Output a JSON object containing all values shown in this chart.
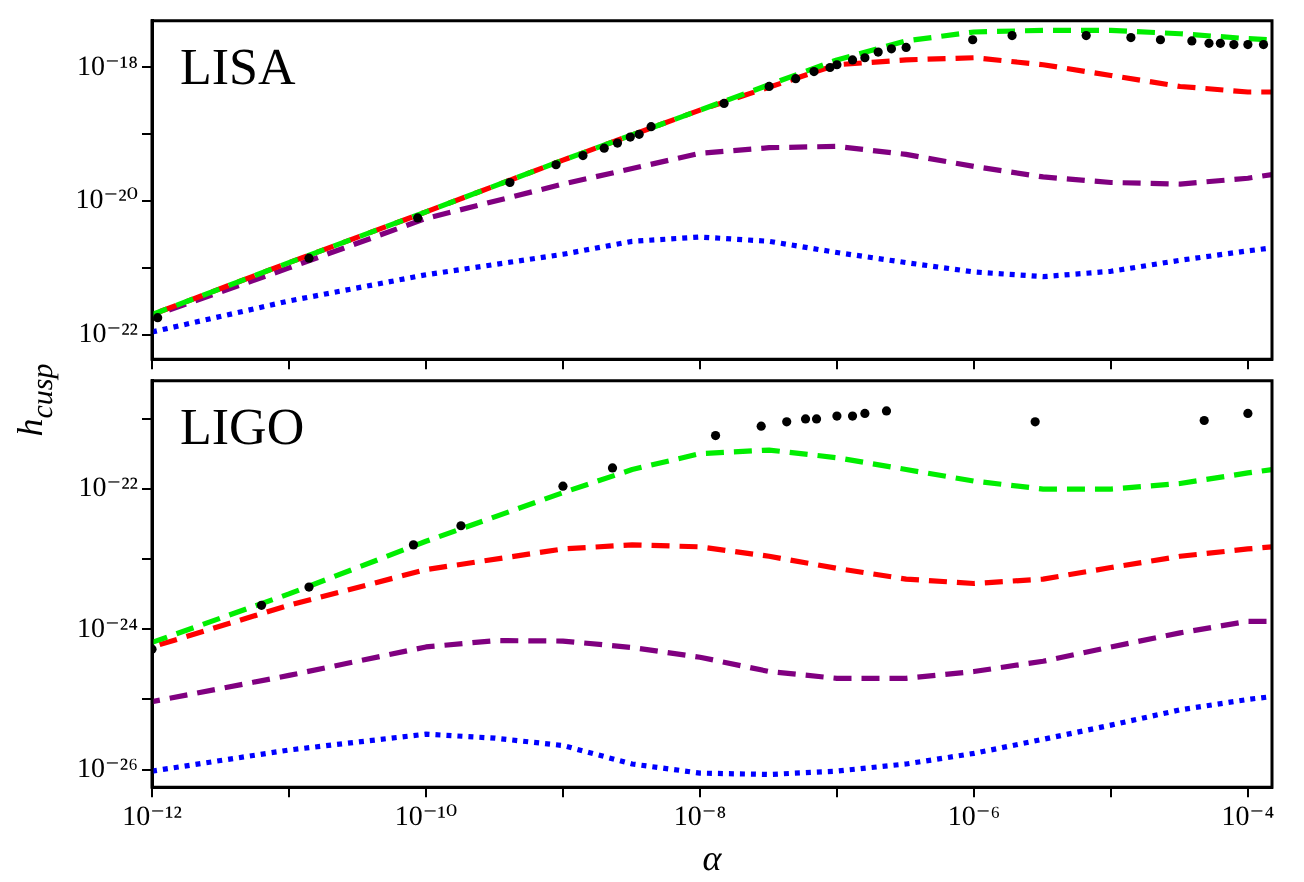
{
  "chart_data": [
    {
      "type": "line",
      "ylabel": "h$_{cusp}$",
      "annotations": [
        "LISA"
      ],
      "log": "xy",
      "grid": false,
      "legend": false,
      "tick_labels": "y",
      "xlim": [
        1e-12,
        0.00015
      ],
      "ylim": [
        4.3e-23,
        5e-18
      ],
      "xticks": [
        {
          "value": 1e-12,
          "label": null
        },
        {
          "value": 1e-11,
          "label": null
        },
        {
          "value": 1e-10,
          "label": null
        },
        {
          "value": 1e-09,
          "label": null
        },
        {
          "value": 1e-08,
          "label": null
        },
        {
          "value": 1e-07,
          "label": null
        },
        {
          "value": 1e-06,
          "label": null
        },
        {
          "value": 1e-05,
          "label": null
        },
        {
          "value": 0.0001,
          "label": null
        }
      ],
      "yticks": [
        {
          "value": 1e-22,
          "label": "10⁻²²"
        },
        {
          "value": 1e-21,
          "label": null
        },
        {
          "value": 1e-20,
          "label": "10⁻²⁰"
        },
        {
          "value": 1e-19,
          "label": null
        },
        {
          "value": 1e-18,
          "label": "10⁻¹⁸"
        }
      ],
      "series": [
        {
          "color": "#0000ff",
          "line_style": "dotted",
          "x": [
            1e-12,
            1e-11,
            1e-10,
            1e-09,
            3.2e-09,
            1e-08,
            3.2e-08,
            1e-07,
            3.2e-07,
            1e-06,
            3.2e-06,
            1e-05,
            3.2e-05,
            0.0001,
            0.00015
          ],
          "values": [
            1.1e-22,
            3.2e-22,
            7.9e-22,
            1.6e-21,
            2.5e-21,
            2.9e-21,
            2.5e-21,
            1.7e-21,
            1.2e-21,
            8.7e-22,
            7.4e-22,
            8.9e-22,
            1.3e-21,
            1.8e-21,
            2e-21
          ]
        },
        {
          "color": "#800080",
          "line_style": "dashed",
          "x": [
            1e-12,
            1e-11,
            1e-10,
            1e-09,
            1e-08,
            3.2e-08,
            1e-07,
            3.2e-07,
            1e-06,
            3.2e-06,
            1e-05,
            3.2e-05,
            0.0001,
            0.00015
          ],
          "values": [
            1.9e-22,
            1e-21,
            5.5e-21,
            1.8e-20,
            5.2e-20,
            6.3e-20,
            6.6e-20,
            5e-20,
            3.3e-20,
            2.3e-20,
            1.9e-20,
            1.8e-20,
            2.2e-20,
            2.5e-20
          ]
        },
        {
          "color": "#ff0000",
          "line_style": "dashed",
          "x": [
            1e-12,
            1e-11,
            1e-10,
            1e-09,
            1e-08,
            1e-07,
            3.2e-07,
            1e-06,
            3.2e-06,
            1e-05,
            3.2e-05,
            0.0001,
            0.00015
          ],
          "values": [
            2e-22,
            1.2e-21,
            6.9e-21,
            4.1e-20,
            2.3e-19,
            1.1e-18,
            1.3e-18,
            1.4e-18,
            1.1e-18,
            7.6e-19,
            5.2e-19,
            4.3e-19,
            4.3e-19
          ]
        },
        {
          "color": "#00ee00",
          "line_style": "dashed",
          "x": [
            1e-12,
            1e-11,
            1e-10,
            1e-09,
            1e-08,
            1e-07,
            3.2e-07,
            1e-06,
            3.2e-06,
            1e-05,
            3.2e-05,
            0.0001,
            0.00015
          ],
          "values": [
            2e-22,
            1.2e-21,
            6.9e-21,
            4.1e-20,
            2.3e-19,
            1.3e-18,
            2.5e-18,
            3.4e-18,
            3.6e-18,
            3.6e-18,
            3.2e-18,
            2.7e-18,
            2.6e-18
          ]
        },
        {
          "type": "scatter",
          "color": "#000000",
          "marker": "circle",
          "x": [
            1.1e-12,
            1.4e-11,
            8.7e-11,
            4.1e-10,
            8.9e-10,
            1.4e-09,
            2e-09,
            2.5e-09,
            3.1e-09,
            3.6e-09,
            4.4e-09,
            1.5e-08,
            3.2e-08,
            5e-08,
            6.8e-08,
            8.9e-08,
            1e-07,
            1.3e-07,
            1.6e-07,
            2e-07,
            2.5e-07,
            3.2e-07,
            9.8e-07,
            1.9e-06,
            6.6e-06,
            1.4e-05,
            2.3e-05,
            3.9e-05,
            5.2e-05,
            6.3e-05,
            7.9e-05,
            0.0001,
            0.00013
          ],
          "values": [
            1.8e-22,
            1.4e-21,
            5.6e-21,
            1.9e-20,
            3.5e-20,
            4.8e-20,
            6.2e-20,
            7.4e-20,
            9.1e-20,
            1e-19,
            1.3e-19,
            2.9e-19,
            5.2e-19,
            6.8e-19,
            8.7e-19,
            1e-18,
            1.1e-18,
            1.3e-18,
            1.4e-18,
            1.7e-18,
            1.9e-18,
            2e-18,
            2.6e-18,
            3e-18,
            3e-18,
            2.8e-18,
            2.6e-18,
            2.5e-18,
            2.3e-18,
            2.3e-18,
            2.2e-18,
            2.2e-18,
            2.2e-18
          ]
        }
      ]
    },
    {
      "type": "line",
      "xlabel": "α",
      "annotations": [
        "LIGO"
      ],
      "log": "xy",
      "grid": false,
      "legend": false,
      "xlim": [
        1e-12,
        0.00015
      ],
      "ylim": [
        5.6e-27,
        3.5e-21
      ],
      "xticks": [
        {
          "value": 1e-12,
          "label": "10⁻¹²"
        },
        {
          "value": 1e-11,
          "label": null
        },
        {
          "value": 1e-10,
          "label": "10⁻¹⁰"
        },
        {
          "value": 1e-09,
          "label": null
        },
        {
          "value": 1e-08,
          "label": "10⁻⁸"
        },
        {
          "value": 1e-07,
          "label": null
        },
        {
          "value": 1e-06,
          "label": "10⁻⁶"
        },
        {
          "value": 1e-05,
          "label": null
        },
        {
          "value": 0.0001,
          "label": "10⁻⁴"
        }
      ],
      "yticks": [
        {
          "value": 1e-26,
          "label": "10⁻²⁶"
        },
        {
          "value": 1e-25,
          "label": null
        },
        {
          "value": 1e-24,
          "label": "10⁻²⁴"
        },
        {
          "value": 1e-23,
          "label": null
        },
        {
          "value": 1e-22,
          "label": "10⁻²²"
        },
        {
          "value": 1e-21,
          "label": null
        }
      ],
      "series": [
        {
          "color": "#0000ff",
          "line_style": "dotted",
          "x": [
            1e-12,
            1e-11,
            1e-10,
            3.2e-10,
            1e-09,
            3.2e-09,
            1e-08,
            3.2e-08,
            1e-07,
            3.2e-07,
            1e-06,
            3.2e-06,
            1e-05,
            3.2e-05,
            0.0001,
            0.00015
          ],
          "values": [
            9.5e-27,
            1.9e-26,
            3.2e-26,
            2.8e-26,
            2.2e-26,
            1.2e-26,
            8.9e-27,
            8.5e-27,
            9.5e-27,
            1.2e-26,
            1.7e-26,
            2.7e-26,
            4.3e-26,
            7.1e-26,
            1e-25,
            1.1e-25
          ]
        },
        {
          "color": "#800080",
          "line_style": "dashed",
          "x": [
            1e-12,
            1e-11,
            1e-10,
            3.2e-10,
            1e-09,
            3.2e-09,
            1e-08,
            3.2e-08,
            1e-07,
            3.2e-07,
            1e-06,
            3.2e-06,
            1e-05,
            3.2e-05,
            0.0001,
            0.00015
          ],
          "values": [
            9.3e-26,
            2.2e-25,
            5.6e-25,
            6.9e-25,
            6.8e-25,
            5.5e-25,
            4e-25,
            2.5e-25,
            2e-25,
            2e-25,
            2.5e-25,
            3.5e-25,
            5.6e-25,
            8.9e-25,
            1.3e-24,
            1.3e-24
          ]
        },
        {
          "color": "#ff0000",
          "line_style": "dashed",
          "x": [
            1e-12,
            1e-11,
            1e-10,
            1e-09,
            3.2e-09,
            1e-08,
            3.2e-08,
            1e-07,
            3.2e-07,
            1e-06,
            3.2e-06,
            1e-05,
            3.2e-05,
            0.0001,
            0.00015
          ],
          "values": [
            5.6e-25,
            2.2e-24,
            7.1e-24,
            1.4e-23,
            1.6e-23,
            1.5e-23,
            1.1e-23,
            7.4e-24,
            5.2e-24,
            4.5e-24,
            5.2e-24,
            7.6e-24,
            1.1e-23,
            1.4e-23,
            1.5e-23
          ]
        },
        {
          "color": "#00ee00",
          "line_style": "dashed",
          "x": [
            1e-12,
            1e-11,
            1e-10,
            1e-09,
            3.2e-09,
            1e-08,
            3.2e-08,
            1e-07,
            3.2e-07,
            1e-06,
            3.2e-06,
            1e-05,
            3.2e-05,
            0.0001,
            0.00015
          ],
          "values": [
            6.5e-25,
            3.2e-24,
            1.8e-23,
            8.9e-23,
            1.9e-22,
            3.2e-22,
            3.6e-22,
            2.8e-22,
            1.9e-22,
            1.3e-22,
            1e-22,
            1e-22,
            1.2e-22,
            1.7e-22,
            1.9e-22
          ]
        },
        {
          "type": "scatter",
          "color": "#000000",
          "marker": "circle",
          "x": [
            1e-12,
            6.3e-12,
            1.4e-11,
            8.1e-11,
            1.8e-10,
            1e-09,
            2.3e-09,
            1.3e-08,
            2.8e-08,
            4.3e-08,
            5.9e-08,
            7.1e-08,
            1e-07,
            1.3e-07,
            1.6e-07,
            2.3e-07,
            2.8e-06,
            4.8e-05,
            0.0001
          ],
          "values": [
            5.2e-25,
            2.2e-24,
            4e-24,
            1.6e-23,
            3e-23,
            1.1e-22,
            2e-22,
            5.8e-22,
            7.9e-22,
            9.1e-22,
            1e-21,
            1e-21,
            1.1e-21,
            1.1e-21,
            1.2e-21,
            1.3e-21,
            9.1e-22,
            9.5e-22,
            1.2e-21
          ]
        }
      ]
    }
  ]
}
